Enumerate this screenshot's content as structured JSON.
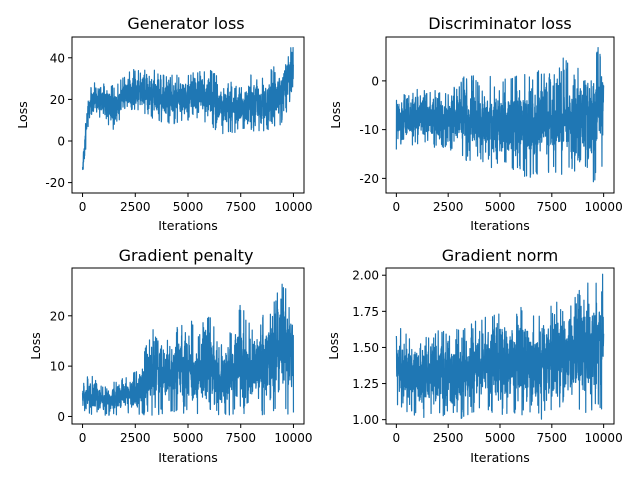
{
  "colors": {
    "line": "#1f77b4",
    "axes": "#000000",
    "background": "#ffffff"
  },
  "chart_data": [
    {
      "type": "line",
      "title": "Generator loss",
      "xlabel": "Iterations",
      "ylabel": "Loss",
      "xlim": [
        -500,
        10500
      ],
      "ylim": [
        -25,
        50
      ],
      "xticks": [
        0,
        2500,
        5000,
        7500,
        10000
      ],
      "yticks": [
        -20,
        0,
        20,
        40
      ],
      "series": [
        {
          "x": [
            0,
            100,
            200,
            300,
            400,
            500,
            700,
            1000,
            1500,
            2000,
            2500,
            3000,
            3500,
            4000,
            4500,
            5000,
            5500,
            6000,
            6500,
            7000,
            7500,
            8000,
            8500,
            9000,
            9500,
            10000
          ],
          "y_min": [
            -22,
            -10,
            2,
            8,
            12,
            14,
            12,
            10,
            5,
            15,
            15,
            12,
            10,
            8,
            8,
            10,
            10,
            8,
            3,
            3,
            5,
            5,
            3,
            5,
            8,
            20
          ],
          "y_max": [
            -5,
            5,
            15,
            22,
            26,
            28,
            30,
            30,
            26,
            32,
            35,
            35,
            34,
            32,
            32,
            32,
            34,
            36,
            32,
            30,
            32,
            33,
            30,
            36,
            42,
            46
          ]
        }
      ]
    },
    {
      "type": "line",
      "title": "Discriminator loss",
      "xlabel": "Iterations",
      "ylabel": "Loss",
      "xlim": [
        -500,
        10500
      ],
      "ylim": [
        -23,
        9
      ],
      "xticks": [
        0,
        2500,
        5000,
        7500,
        10000
      ],
      "yticks": [
        -20,
        -10,
        0
      ],
      "series": [
        {
          "x": [
            0,
            100,
            200,
            300,
            500,
            1000,
            1500,
            2000,
            2500,
            3000,
            3500,
            4000,
            4500,
            5000,
            5500,
            6000,
            6500,
            7000,
            7500,
            8000,
            8500,
            9000,
            9500,
            10000
          ],
          "y_min": [
            -19,
            -14,
            -16,
            -15,
            -14,
            -13,
            -13,
            -14,
            -14,
            -15,
            -17,
            -16,
            -18,
            -17,
            -18,
            -19,
            -21,
            -18,
            -20,
            -20,
            -19,
            -21,
            -21,
            -19
          ],
          "y_max": [
            -3,
            -1,
            -3,
            -2,
            -3,
            -1,
            -2,
            -2,
            -2,
            0,
            2,
            0,
            2,
            0,
            1,
            2,
            1,
            3,
            2,
            5,
            3,
            4,
            6,
            8
          ]
        }
      ]
    },
    {
      "type": "line",
      "title": "Gradient penalty",
      "xlabel": "Iterations",
      "ylabel": "Loss",
      "xlim": [
        -500,
        10500
      ],
      "ylim": [
        -1.5,
        29.5
      ],
      "xticks": [
        0,
        2500,
        5000,
        7500,
        10000
      ],
      "yticks": [
        0,
        10,
        20
      ],
      "series": [
        {
          "x": [
            0,
            100,
            500,
            1000,
            1500,
            2000,
            2500,
            3000,
            3500,
            4000,
            4500,
            5000,
            5500,
            6000,
            6500,
            7000,
            7500,
            8000,
            8500,
            9000,
            9500,
            10000
          ],
          "y_min": [
            1,
            0.5,
            0.3,
            0.2,
            0.2,
            0.2,
            0.2,
            0.2,
            0.2,
            0.2,
            0.2,
            0.2,
            0.2,
            0.2,
            0.2,
            0.2,
            0.2,
            0.2,
            0.2,
            0.2,
            0.2,
            0.5
          ],
          "y_max": [
            6,
            8,
            8,
            6,
            7,
            8,
            9,
            14,
            19,
            16,
            18,
            20,
            17,
            21,
            14,
            18,
            23,
            18,
            20,
            22,
            28,
            25
          ]
        }
      ]
    },
    {
      "type": "line",
      "title": "Gradient norm",
      "xlabel": "Iterations",
      "ylabel": "Loss",
      "xlim": [
        -500,
        10500
      ],
      "ylim": [
        0.97,
        2.05
      ],
      "xticks": [
        0,
        2500,
        5000,
        7500,
        10000
      ],
      "yticks": [
        1.0,
        1.25,
        1.5,
        1.75,
        2.0
      ],
      "yticklabels": [
        "1.00",
        "1.25",
        "1.50",
        "1.75",
        "2.00"
      ],
      "series": [
        {
          "x": [
            0,
            100,
            300,
            500,
            1000,
            1500,
            2000,
            2500,
            3000,
            3500,
            4000,
            4500,
            5000,
            5500,
            6000,
            6500,
            7000,
            7500,
            8000,
            8500,
            9000,
            9500,
            10000
          ],
          "y_min": [
            1.15,
            1.05,
            1.08,
            1.05,
            1.02,
            1.0,
            1.0,
            1.03,
            1.0,
            1.02,
            1.02,
            1.05,
            1.03,
            1.02,
            1.03,
            1.02,
            1.0,
            1.03,
            1.05,
            1.05,
            1.05,
            1.05,
            1.08
          ],
          "y_max": [
            1.68,
            1.65,
            1.62,
            1.6,
            1.58,
            1.6,
            1.62,
            1.62,
            1.64,
            1.65,
            1.7,
            1.72,
            1.75,
            1.73,
            1.78,
            1.72,
            1.75,
            1.85,
            1.8,
            1.85,
            1.95,
            1.95,
            2.02
          ]
        }
      ]
    }
  ]
}
